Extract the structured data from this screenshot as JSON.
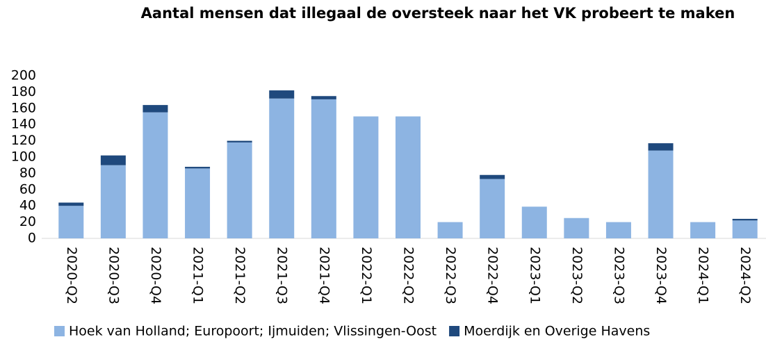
{
  "chart_data": {
    "type": "stacked_bar",
    "title": "Aantal mensen dat illegaal de oversteek naar het VK probeert te maken",
    "categories": [
      "2020-Q2",
      "2020-Q3",
      "2020-Q4",
      "2021-Q1",
      "2021-Q2",
      "2021-Q3",
      "2021-Q4",
      "2022-Q1",
      "2022-Q2",
      "2022-Q3",
      "2022-Q4",
      "2023-Q1",
      "2023-Q2",
      "2023-Q3",
      "2023-Q4",
      "2024-Q1",
      "2024-Q2"
    ],
    "series": [
      {
        "name": "Hoek van Holland; Europoort; Ijmuiden; Vlissingen-Oost",
        "color": "#8db4e2",
        "values": [
          40,
          90,
          155,
          86,
          118,
          172,
          171,
          150,
          150,
          20,
          73,
          39,
          25,
          20,
          108,
          20,
          22
        ]
      },
      {
        "name": "Moerdijk en Overige Havens",
        "color": "#1f497d",
        "values": [
          4,
          12,
          9,
          2,
          2,
          10,
          4,
          0,
          0,
          0,
          5,
          0,
          0,
          0,
          9,
          0,
          2
        ]
      }
    ],
    "ylim": [
      0,
      200
    ],
    "yticks": [
      0,
      20,
      40,
      60,
      80,
      100,
      120,
      140,
      160,
      180,
      200
    ],
    "legend": "bottom"
  }
}
